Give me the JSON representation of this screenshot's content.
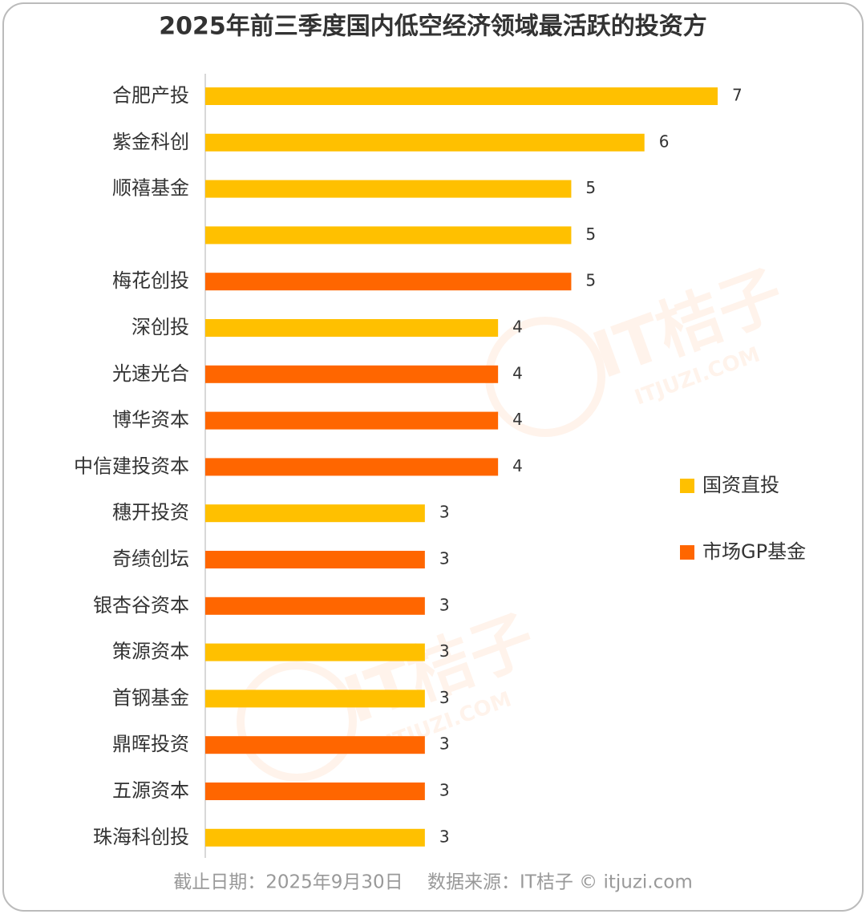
{
  "chart_data": {
    "type": "bar",
    "orientation": "horizontal",
    "title": "2025年前三季度国内低空经济领域最活跃的投资方",
    "categories": [
      "合肥产投",
      "紫金科创",
      "顺禧基金",
      null,
      "梅花创投",
      "深创投",
      "光速光合",
      "博华资本",
      "中信建投资本",
      "穗开投资",
      "奇绩创坛",
      "银杏谷资本",
      "策源资本",
      "首钢基金",
      "鼎晖投资",
      "五源资本",
      "珠海科创投"
    ],
    "series": [
      {
        "name": "国资直投",
        "color": "#FFC000",
        "values": [
          7,
          6,
          5,
          5,
          null,
          4,
          null,
          null,
          null,
          3,
          null,
          null,
          3,
          3,
          null,
          null,
          3
        ]
      },
      {
        "name": "市场GP基金",
        "color": "#FF6600",
        "values": [
          null,
          null,
          null,
          null,
          5,
          null,
          4,
          4,
          4,
          null,
          3,
          3,
          null,
          null,
          3,
          3,
          null
        ]
      }
    ],
    "xlim": [
      0,
      7
    ],
    "legend": "right",
    "source": "截止日期：2025年9月30日　 数据来源：IT桔子 © itjuzi.com",
    "watermark": [
      "IT桔子",
      "ITJUZI.COM"
    ]
  }
}
